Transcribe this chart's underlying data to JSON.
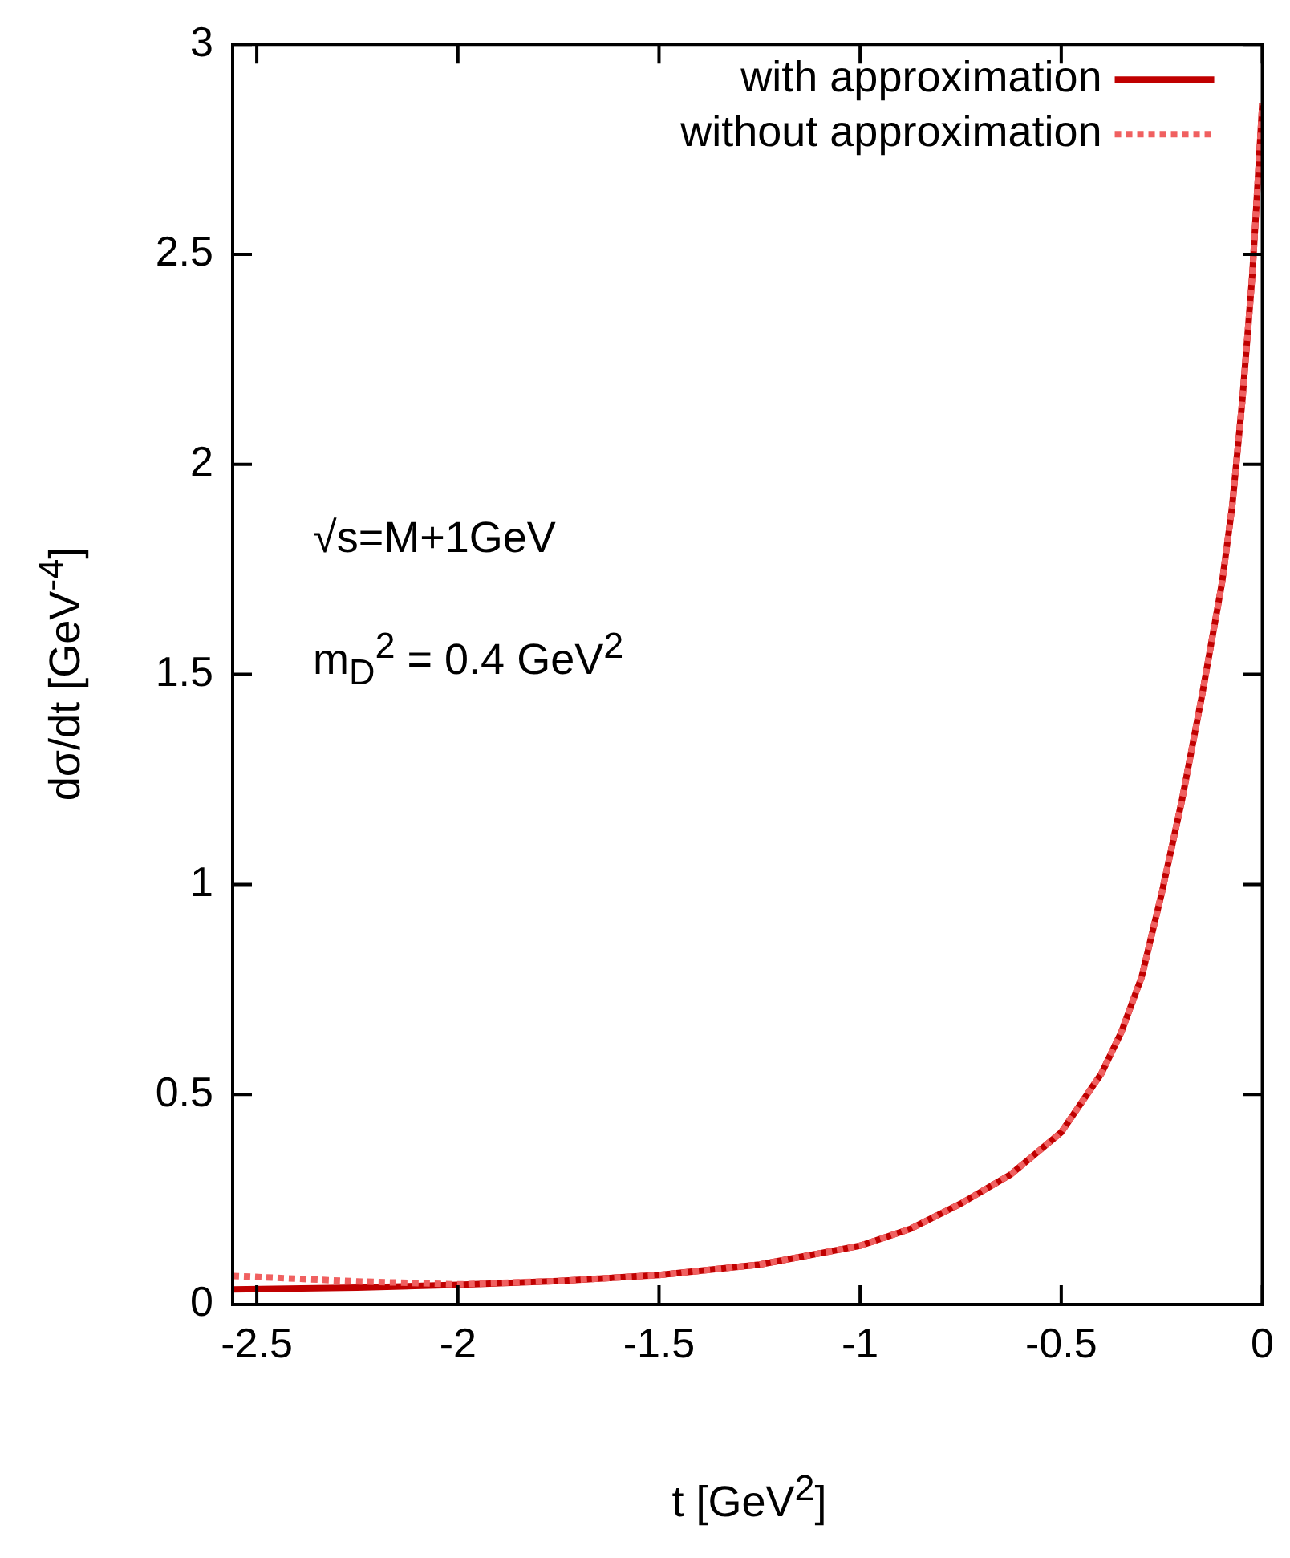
{
  "chart_data": {
    "type": "line",
    "xlabel": "t [GeV$^{2}$]",
    "ylabel": "dσ/dt [GeV$^{-4}$]",
    "annotations": [
      "√s=M+1GeV",
      "m$_{D}$$^{2}$ = 0.4 GeV$^{2}$"
    ],
    "x": [
      -2.56,
      -2.25,
      -2,
      -1.75,
      -1.5,
      -1.25,
      -1,
      -0.875,
      -0.75,
      -0.625,
      -0.5,
      -0.4,
      -0.35,
      -0.3,
      -0.25,
      -0.2,
      -0.15,
      -0.1,
      -0.075,
      -0.05,
      -0.025,
      0
    ],
    "series": [
      {
        "name": "with approximation",
        "color": "#c00000",
        "line_style": "solid",
        "values": [
          0.036,
          0.04,
          0.047,
          0.056,
          0.07,
          0.095,
          0.14,
          0.18,
          0.24,
          0.31,
          0.41,
          0.55,
          0.65,
          0.78,
          0.98,
          1.2,
          1.45,
          1.72,
          1.9,
          2.15,
          2.45,
          2.86
        ]
      },
      {
        "name": "without approximation",
        "color": "#f06060",
        "line_style": "dotted",
        "values": [
          0.068,
          0.055,
          0.048,
          0.056,
          0.07,
          0.095,
          0.14,
          0.18,
          0.24,
          0.31,
          0.41,
          0.55,
          0.65,
          0.78,
          0.98,
          1.2,
          1.45,
          1.72,
          1.9,
          2.15,
          2.45,
          2.86
        ]
      }
    ],
    "xlim": [
      -2.56,
      0
    ],
    "xticks": [
      -2.5,
      -2,
      -1.5,
      -1,
      -0.5,
      0
    ],
    "ylim": [
      0,
      3
    ],
    "yticks": [
      0,
      0.5,
      1,
      1.5,
      2,
      2.5,
      3
    ],
    "grid": false,
    "legend": "top right",
    "marker": "none"
  }
}
